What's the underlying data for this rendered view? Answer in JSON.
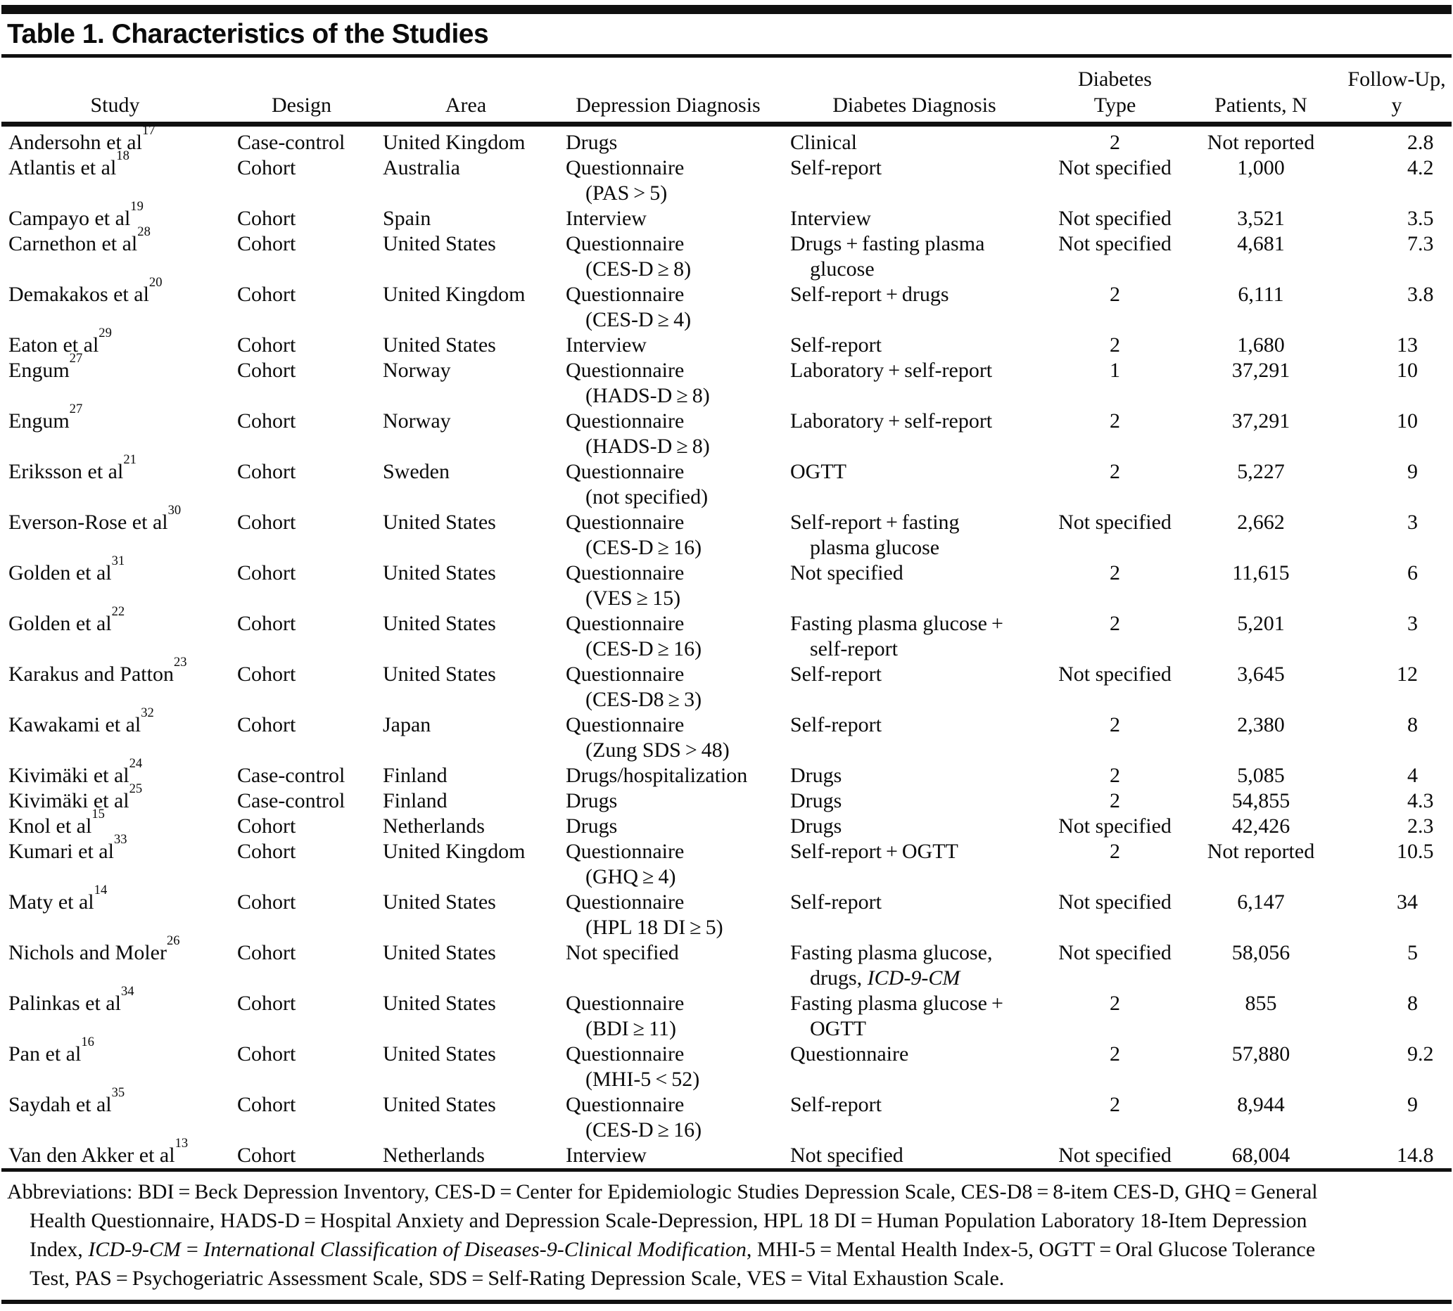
{
  "title": "Table 1. Characteristics of the Studies",
  "table": {
    "columns": [
      {
        "id": "study",
        "label": "Study"
      },
      {
        "id": "design",
        "label": "Design"
      },
      {
        "id": "area",
        "label": "Area"
      },
      {
        "id": "depdx",
        "label": "Depression Diagnosis"
      },
      {
        "id": "diabdx",
        "label": "Diabetes Diagnosis"
      },
      {
        "id": "type",
        "label": [
          "Diabetes",
          "Type"
        ]
      },
      {
        "id": "patients",
        "label": "Patients, N"
      },
      {
        "id": "fu",
        "label": [
          "Follow-Up,",
          "y"
        ]
      }
    ],
    "rows": [
      {
        "study": {
          "text": "Andersohn et al",
          "ref": "17"
        },
        "design": "Case-control",
        "area": "United Kingdom",
        "depdx": [
          "Drugs"
        ],
        "diabdx": [
          "Clinical"
        ],
        "type": "2",
        "patients": "Not reported",
        "fu": "2.8"
      },
      {
        "study": {
          "text": "Atlantis et al",
          "ref": "18"
        },
        "design": "Cohort",
        "area": "Australia",
        "depdx": [
          "Questionnaire",
          "(PAS > 5)"
        ],
        "diabdx": [
          "Self-report"
        ],
        "type": "Not specified",
        "patients": "1,000",
        "fu": "4.2"
      },
      {
        "study": {
          "text": "Campayo et al",
          "ref": "19"
        },
        "design": "Cohort",
        "area": "Spain",
        "depdx": [
          "Interview"
        ],
        "diabdx": [
          "Interview"
        ],
        "type": "Not specified",
        "patients": "3,521",
        "fu": "3.5"
      },
      {
        "study": {
          "text": "Carnethon et al",
          "ref": "28"
        },
        "design": "Cohort",
        "area": "United States",
        "depdx": [
          "Questionnaire",
          "(CES-D ≥ 8)"
        ],
        "diabdx": [
          "Drugs + fasting plasma",
          "glucose"
        ],
        "type": "Not specified",
        "patients": "4,681",
        "fu": "7.3"
      },
      {
        "study": {
          "text": "Demakakos et al",
          "ref": "20"
        },
        "design": "Cohort",
        "area": "United Kingdom",
        "depdx": [
          "Questionnaire",
          "(CES-D ≥ 4)"
        ],
        "diabdx": [
          "Self-report + drugs"
        ],
        "type": "2",
        "patients": "6,111",
        "fu": "3.8"
      },
      {
        "study": {
          "text": "Eaton et al",
          "ref": "29"
        },
        "design": "Cohort",
        "area": "United States",
        "depdx": [
          "Interview"
        ],
        "diabdx": [
          "Self-report"
        ],
        "type": "2",
        "patients": "1,680",
        "fu": "13"
      },
      {
        "study": {
          "text": "Engum",
          "ref": "27"
        },
        "design": "Cohort",
        "area": "Norway",
        "depdx": [
          "Questionnaire",
          "(HADS-D ≥ 8)"
        ],
        "diabdx": [
          "Laboratory + self-report"
        ],
        "type": "1",
        "patients": "37,291",
        "fu": "10"
      },
      {
        "study": {
          "text": "Engum",
          "ref": "27"
        },
        "design": "Cohort",
        "area": "Norway",
        "depdx": [
          "Questionnaire",
          "(HADS-D ≥ 8)"
        ],
        "diabdx": [
          "Laboratory + self-report"
        ],
        "type": "2",
        "patients": "37,291",
        "fu": "10"
      },
      {
        "study": {
          "text": "Eriksson et al",
          "ref": "21"
        },
        "design": "Cohort",
        "area": "Sweden",
        "depdx": [
          "Questionnaire",
          "(not specified)"
        ],
        "diabdx": [
          "OGTT"
        ],
        "type": "2",
        "patients": "5,227",
        "fu": "9"
      },
      {
        "study": {
          "text": "Everson-Rose et al",
          "ref": "30"
        },
        "design": "Cohort",
        "area": "United States",
        "depdx": [
          "Questionnaire",
          "(CES-D ≥ 16)"
        ],
        "diabdx": [
          "Self-report + fasting",
          "plasma glucose"
        ],
        "type": "Not specified",
        "patients": "2,662",
        "fu": "3"
      },
      {
        "study": {
          "text": "Golden et al",
          "ref": "31"
        },
        "design": "Cohort",
        "area": "United States",
        "depdx": [
          "Questionnaire",
          "(VES ≥ 15)"
        ],
        "diabdx": [
          "Not specified"
        ],
        "type": "2",
        "patients": "11,615",
        "fu": "6"
      },
      {
        "study": {
          "text": "Golden et al",
          "ref": "22"
        },
        "design": "Cohort",
        "area": "United States",
        "depdx": [
          "Questionnaire",
          "(CES-D ≥ 16)"
        ],
        "diabdx": [
          "Fasting plasma glucose +",
          "self-report"
        ],
        "type": "2",
        "patients": "5,201",
        "fu": "3"
      },
      {
        "study": {
          "text": "Karakus and Patton",
          "ref": "23"
        },
        "design": "Cohort",
        "area": "United States",
        "depdx": [
          "Questionnaire",
          "(CES-D8 ≥ 3)"
        ],
        "diabdx": [
          "Self-report"
        ],
        "type": "Not specified",
        "patients": "3,645",
        "fu": "12"
      },
      {
        "study": {
          "text": "Kawakami et al",
          "ref": "32"
        },
        "design": "Cohort",
        "area": "Japan",
        "depdx": [
          "Questionnaire",
          "(Zung SDS > 48)"
        ],
        "diabdx": [
          "Self-report"
        ],
        "type": "2",
        "patients": "2,380",
        "fu": "8"
      },
      {
        "study": {
          "text": "Kivimäki et al",
          "ref": "24"
        },
        "design": "Case-control",
        "area": "Finland",
        "depdx": [
          "Drugs/hospitalization"
        ],
        "diabdx": [
          "Drugs"
        ],
        "type": "2",
        "patients": "5,085",
        "fu": "4"
      },
      {
        "study": {
          "text": "Kivimäki et al",
          "ref": "25"
        },
        "design": "Case-control",
        "area": "Finland",
        "depdx": [
          "Drugs"
        ],
        "diabdx": [
          "Drugs"
        ],
        "type": "2",
        "patients": "54,855",
        "fu": "4.3"
      },
      {
        "study": {
          "text": "Knol et al",
          "ref": "15"
        },
        "design": "Cohort",
        "area": "Netherlands",
        "depdx": [
          "Drugs"
        ],
        "diabdx": [
          "Drugs"
        ],
        "type": "Not specified",
        "patients": "42,426",
        "fu": "2.3"
      },
      {
        "study": {
          "text": "Kumari et al",
          "ref": "33"
        },
        "design": "Cohort",
        "area": "United Kingdom",
        "depdx": [
          "Questionnaire",
          "(GHQ ≥ 4)"
        ],
        "diabdx": [
          "Self-report + OGTT"
        ],
        "type": "2",
        "patients": "Not reported",
        "fu": "10.5"
      },
      {
        "study": {
          "text": "Maty et al",
          "ref": "14"
        },
        "design": "Cohort",
        "area": "United States",
        "depdx": [
          "Questionnaire",
          "(HPL 18 DI ≥ 5)"
        ],
        "diabdx": [
          "Self-report"
        ],
        "type": "Not specified",
        "patients": "6,147",
        "fu": "34"
      },
      {
        "study": {
          "text": "Nichols and Moler",
          "ref": "26"
        },
        "design": "Cohort",
        "area": "United States",
        "depdx": [
          "Not specified"
        ],
        "diabdx": [
          "Fasting plasma glucose,",
          [
            {
              "t": "drugs, "
            },
            {
              "t": "ICD-9-CM",
              "i": true
            }
          ]
        ],
        "type": "Not specified",
        "patients": "58,056",
        "fu": "5"
      },
      {
        "study": {
          "text": "Palinkas et al",
          "ref": "34"
        },
        "design": "Cohort",
        "area": "United States",
        "depdx": [
          "Questionnaire",
          "(BDI ≥ 11)"
        ],
        "diabdx": [
          "Fasting plasma glucose +",
          "OGTT"
        ],
        "type": "2",
        "patients": "855",
        "fu": "8"
      },
      {
        "study": {
          "text": "Pan et al",
          "ref": "16"
        },
        "design": "Cohort",
        "area": "United States",
        "depdx": [
          "Questionnaire",
          "(MHI-5 < 52)"
        ],
        "diabdx": [
          "Questionnaire"
        ],
        "type": "2",
        "patients": "57,880",
        "fu": "9.2"
      },
      {
        "study": {
          "text": "Saydah et al",
          "ref": "35"
        },
        "design": "Cohort",
        "area": "United States",
        "depdx": [
          "Questionnaire",
          "(CES-D ≥ 16)"
        ],
        "diabdx": [
          "Self-report"
        ],
        "type": "2",
        "patients": "8,944",
        "fu": "9"
      },
      {
        "study": {
          "text": "Van den Akker et al",
          "ref": "13"
        },
        "design": "Cohort",
        "area": "Netherlands",
        "depdx": [
          "Interview"
        ],
        "diabdx": [
          "Not specified"
        ],
        "type": "Not specified",
        "patients": "68,004",
        "fu": "14.8"
      }
    ]
  },
  "footnote": {
    "lines": [
      [
        {
          "t": "Abbreviations: BDI = Beck Depression Inventory, CES-D = Center for Epidemiologic Studies Depression Scale, CES-D8 = 8-item CES-D, GHQ = General"
        }
      ],
      [
        {
          "t": "Health Questionnaire, HADS-D = Hospital Anxiety and Depression Scale-Depression, HPL 18 DI = Human Population Laboratory 18-Item Depression"
        }
      ],
      [
        {
          "t": "Index, "
        },
        {
          "t": "ICD-9-CM = International Classification of Diseases-9-Clinical Modification",
          "i": true
        },
        {
          "t": ", MHI-5 = Mental Health Index-5, OGTT = Oral Glucose Tolerance"
        }
      ],
      [
        {
          "t": "Test, PAS = Psychogeriatric Assessment Scale, SDS = Self-Rating Depression Scale, VES = Vital Exhaustion Scale."
        }
      ]
    ]
  }
}
